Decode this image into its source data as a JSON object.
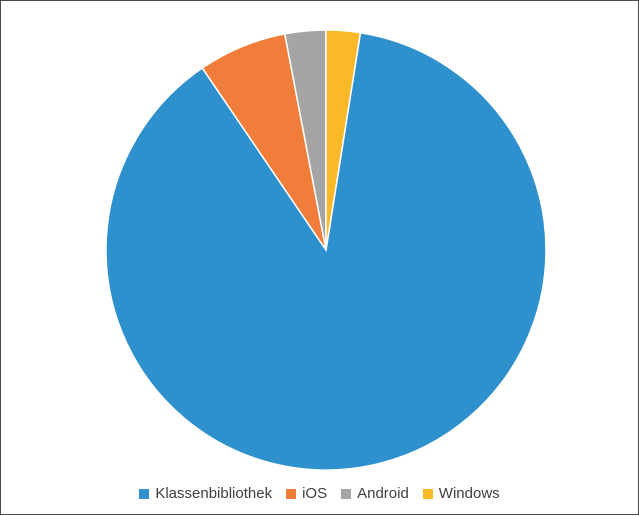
{
  "chart_data": {
    "type": "pie",
    "title": "",
    "categories": [
      "Klassenbibliothek",
      "iOS",
      "Android",
      "Windows"
    ],
    "values": [
      88,
      6.5,
      3,
      2.5
    ],
    "colors": [
      "#2e90cc",
      "#f07e3a",
      "#a5a5a5",
      "#f9b928"
    ],
    "legend_position": "bottom",
    "start_direction": "clockwise from 12 o'clock, largest slice last"
  }
}
